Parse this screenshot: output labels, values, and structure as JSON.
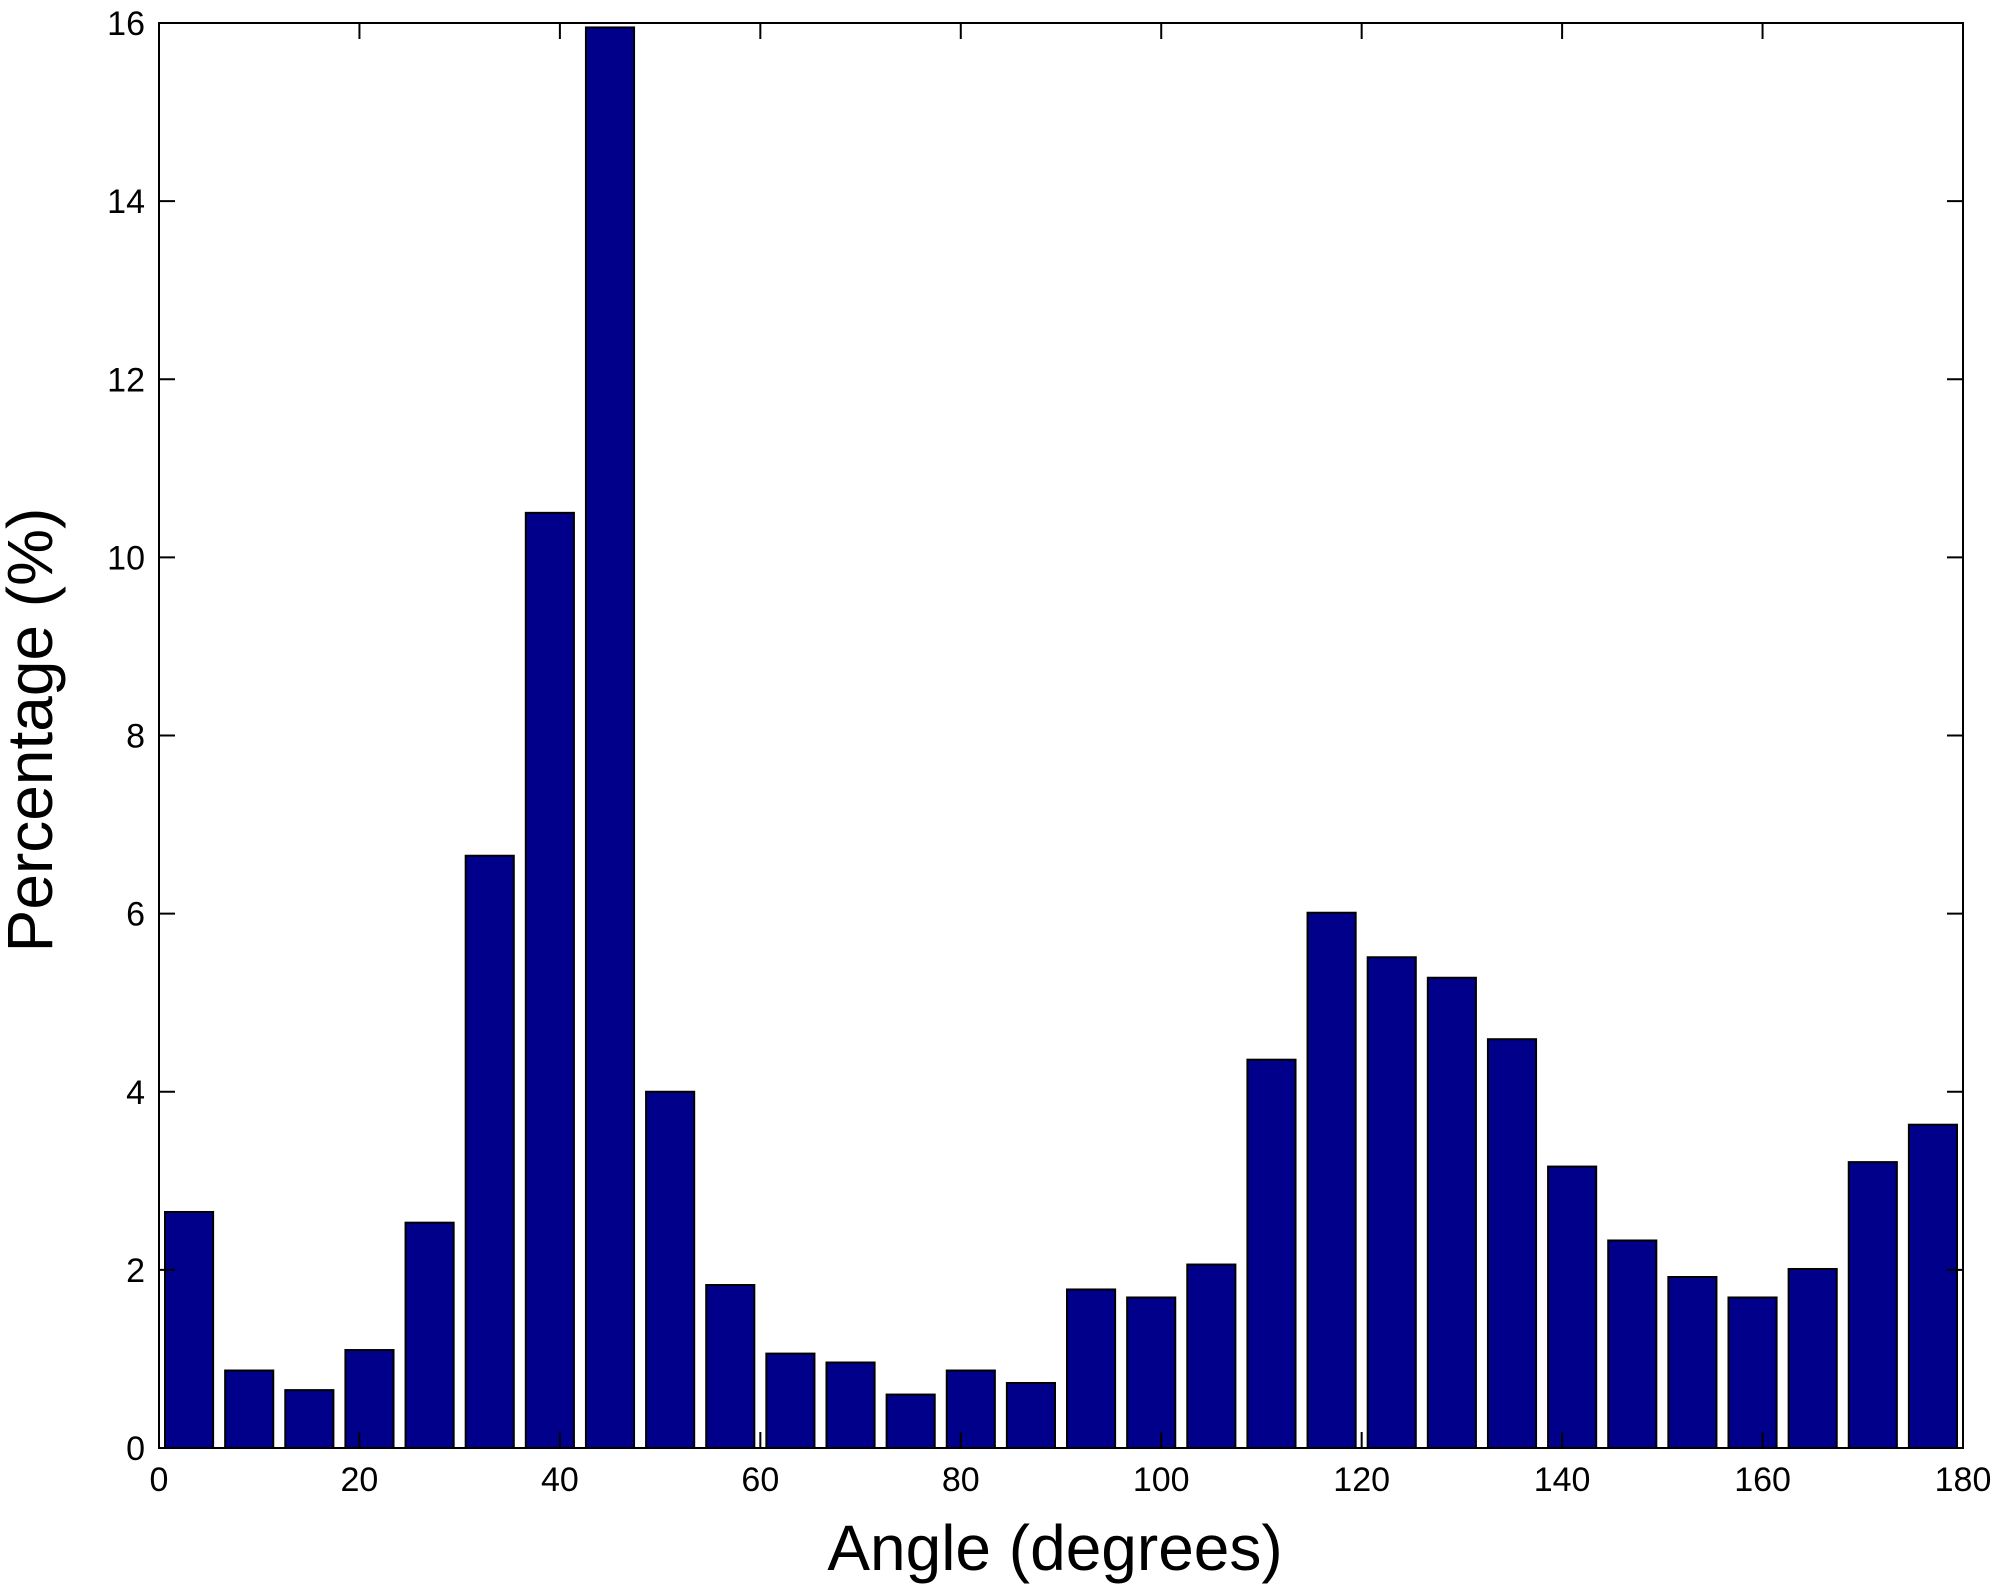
{
  "chart_data": {
    "type": "bar",
    "title": "",
    "xlabel": "Angle (degrees)",
    "ylabel": "Percentage (%)",
    "xlim": [
      0,
      180
    ],
    "ylim": [
      0,
      16
    ],
    "x_ticks": [
      "0",
      "20",
      "40",
      "60",
      "80",
      "100",
      "120",
      "140",
      "160",
      "180"
    ],
    "y_ticks": [
      "0",
      "2",
      "4",
      "6",
      "8",
      "10",
      "12",
      "14",
      "16"
    ],
    "grid": false,
    "legend": "none",
    "colors": {
      "bar_fill": "#00008B",
      "bar_edge": "#000000",
      "axis": "#000000"
    },
    "x": [
      3,
      9,
      15,
      21,
      27,
      33,
      39,
      45,
      51,
      57,
      63,
      69,
      75,
      81,
      87,
      93,
      99,
      105,
      111,
      117,
      123,
      129,
      135,
      141,
      147,
      153,
      159,
      165,
      171,
      177
    ],
    "values": [
      2.65,
      0.87,
      0.65,
      1.1,
      2.53,
      6.65,
      10.5,
      15.95,
      4.0,
      1.83,
      1.06,
      0.96,
      0.6,
      0.87,
      0.73,
      1.78,
      1.69,
      2.06,
      4.36,
      6.01,
      5.51,
      5.28,
      4.59,
      3.16,
      2.33,
      1.92,
      1.69,
      2.01,
      3.21,
      3.63
    ]
  }
}
